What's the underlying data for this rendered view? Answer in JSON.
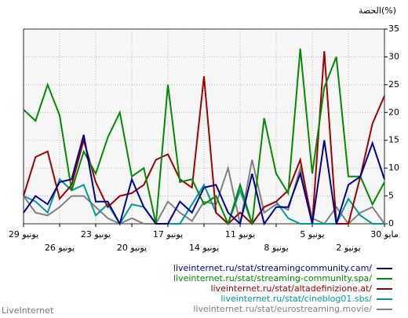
{
  "chart_data": {
    "type": "line",
    "y_label": "الحصة(%)",
    "watermark": "LiveInternet",
    "categories": [
      "29 يونيو",
      null,
      null,
      "26 يونيو",
      null,
      null,
      "23 يونيو",
      null,
      null,
      "20 يونيو",
      null,
      null,
      "17 يونيو",
      null,
      null,
      "14 يونيو",
      null,
      null,
      "11 يونيو",
      null,
      null,
      "8 يونيو",
      null,
      null,
      "5 يونيو",
      null,
      null,
      "2 يونيو",
      null,
      null,
      "30 مايو"
    ],
    "ylim": [
      0,
      35
    ],
    "yticks": [
      0,
      5,
      10,
      15,
      20,
      25,
      30,
      35
    ],
    "grid": true,
    "series": [
      {
        "name": "liveinternet.ru/stat/streamingcommunity.cam/",
        "color": "#00008b",
        "values": [
          2,
          5,
          3.5,
          7.5,
          8,
          16,
          4,
          4,
          0,
          8,
          3,
          0,
          0,
          4,
          2,
          6.5,
          7,
          2,
          0,
          9,
          0,
          3,
          3,
          9,
          0,
          15,
          0,
          7,
          8.5,
          14.5,
          8
        ]
      },
      {
        "name": "liveinternet.ru/stat/streaming-community.spa/",
        "color": "#008b00",
        "values": [
          20.5,
          18.5,
          25,
          19.5,
          6,
          13,
          9,
          15.5,
          20,
          8.5,
          10,
          0,
          25,
          7.5,
          8,
          3.5,
          5,
          0,
          7,
          0,
          19,
          9,
          5.5,
          31.5,
          9,
          24.5,
          30,
          8.5,
          8.5,
          3.5,
          7.5
        ]
      },
      {
        "name": "liveinternet.ru/stat/altadefinizione.at/",
        "color": "#a00000",
        "values": [
          5,
          12,
          13,
          4.5,
          7,
          15,
          7.5,
          3,
          5,
          5.5,
          7,
          11.5,
          12.5,
          8,
          6.5,
          26.5,
          2,
          0,
          2,
          0,
          3,
          4,
          6,
          11.5,
          0,
          31,
          0,
          0,
          8.5,
          18,
          23
        ]
      },
      {
        "name": "liveinternet.ru/stat/cineblog01.sbs/",
        "color": "#009999",
        "values": [
          5,
          4,
          2,
          8,
          6,
          7,
          1.5,
          3.5,
          0,
          3.5,
          3,
          0,
          0,
          0,
          3.5,
          7,
          2,
          0,
          6,
          0,
          3,
          4,
          1,
          0,
          0,
          0,
          0,
          4.5,
          1.5,
          0,
          0
        ]
      },
      {
        "name": "liveinternet.ru/stat/eurostreaming.movie/",
        "color": "#808080",
        "values": [
          5,
          2,
          1.5,
          3,
          5,
          5,
          3,
          1,
          0,
          1,
          0,
          0,
          4,
          2,
          0.5,
          4,
          3.5,
          10,
          0,
          11.5,
          2,
          3.5,
          2.5,
          10,
          1,
          0,
          3,
          0,
          2,
          3,
          0
        ]
      }
    ]
  }
}
